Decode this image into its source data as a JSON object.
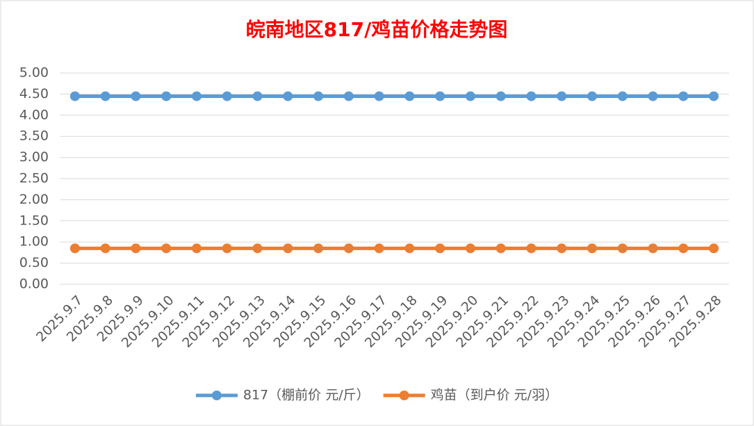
{
  "chart_data": {
    "type": "line",
    "title": "皖南地区817/鸡苗价格走势图",
    "categories": [
      "2025.9.7",
      "2025.9.8",
      "2025.9.9",
      "2025.9.10",
      "2025.9.11",
      "2025.9.12",
      "2025.9.13",
      "2025.9.14",
      "2025.9.15",
      "2025.9.16",
      "2025.9.17",
      "2025.9.18",
      "2025.9.19",
      "2025.9.20",
      "2025.9.21",
      "2025.9.22",
      "2025.9.23",
      "2025.9.24",
      "2025.9.25",
      "2025.9.26",
      "2025.9.27",
      "2025.9.28"
    ],
    "series": [
      {
        "name": "817（棚前价 元/斤）",
        "color": "#5b9bd5",
        "values": [
          4.45,
          4.45,
          4.45,
          4.45,
          4.45,
          4.45,
          4.45,
          4.45,
          4.45,
          4.45,
          4.45,
          4.45,
          4.45,
          4.45,
          4.45,
          4.45,
          4.45,
          4.45,
          4.45,
          4.45,
          4.45,
          4.45
        ]
      },
      {
        "name": "鸡苗（到户价 元/羽）",
        "color": "#ed7d31",
        "values": [
          0.85,
          0.85,
          0.85,
          0.85,
          0.85,
          0.85,
          0.85,
          0.85,
          0.85,
          0.85,
          0.85,
          0.85,
          0.85,
          0.85,
          0.85,
          0.85,
          0.85,
          0.85,
          0.85,
          0.85,
          0.85,
          0.85
        ]
      }
    ],
    "ylim": [
      0,
      5
    ],
    "yticks": [
      {
        "value": 0,
        "label": "0.00"
      },
      {
        "value": 0.5,
        "label": "0.50"
      },
      {
        "value": 1,
        "label": "1.00"
      },
      {
        "value": 1.5,
        "label": "1.50"
      },
      {
        "value": 2,
        "label": "2.00"
      },
      {
        "value": 2.5,
        "label": "2.50"
      },
      {
        "value": 3,
        "label": "3.00"
      },
      {
        "value": 3.5,
        "label": "3.50"
      },
      {
        "value": 4,
        "label": "4.00"
      },
      {
        "value": 4.5,
        "label": "4.50"
      },
      {
        "value": 5,
        "label": "5.00"
      }
    ],
    "grid": true,
    "legend": "bottom"
  }
}
